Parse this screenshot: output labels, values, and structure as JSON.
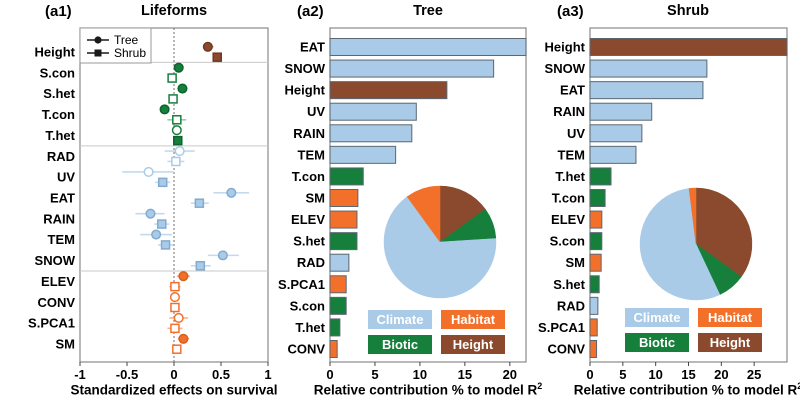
{
  "colors": {
    "climate": "#A9CBE8",
    "habitat": "#F3702B",
    "biotic": "#157F3B",
    "height": "#8B4A2D",
    "climate_dark": "#82ABD0",
    "habitat_dark": "#D65E1E",
    "biotic_dark": "#0E6330",
    "height_dark": "#6E3920",
    "climate_light": "#C3DAEE",
    "habitat_light": "#F8B488",
    "biotic_light": "#A2C9AC",
    "height_light": "#C4A090",
    "bar_border": "#5C6772",
    "panel_border": "#8A8A8A",
    "separator": "#C9C9C9",
    "zero_line": "#6F6F6F",
    "axis_text": "#000000",
    "legend_text": "#FFFFFF",
    "legend_marker": "#1A1A1A"
  },
  "chart_data": [
    {
      "type": "scatter",
      "panel_label": "(a1)",
      "title": "Lifeforms",
      "xlabel": "Standardized effects on survival",
      "xlabel_sup": "",
      "xlim": [
        -1,
        1
      ],
      "x_ticks": [
        -1,
        -0.5,
        0,
        0.5,
        1
      ],
      "legend": [
        {
          "label": "Tree",
          "marker": "circle"
        },
        {
          "label": "Shrub",
          "marker": "square"
        }
      ],
      "rows": [
        {
          "name": "Height",
          "group": "height",
          "tree": {
            "value": 0.36,
            "lo": 0.31,
            "hi": 0.42,
            "filled": true
          },
          "shrub": {
            "value": 0.46,
            "lo": 0.41,
            "hi": 0.51,
            "filled": true
          }
        },
        {
          "name": "S.con",
          "group": "biotic",
          "tree": {
            "value": 0.05,
            "lo": 0.02,
            "hi": 0.09,
            "filled": true
          },
          "shrub": {
            "value": -0.02,
            "lo": -0.06,
            "hi": 0.02,
            "filled": false
          }
        },
        {
          "name": "S.het",
          "group": "biotic",
          "tree": {
            "value": 0.09,
            "lo": 0.05,
            "hi": 0.13,
            "filled": true
          },
          "shrub": {
            "value": -0.01,
            "lo": -0.05,
            "hi": 0.03,
            "filled": false
          }
        },
        {
          "name": "T.con",
          "group": "biotic",
          "tree": {
            "value": -0.1,
            "lo": -0.14,
            "hi": -0.06,
            "filled": true
          },
          "shrub": {
            "value": 0.03,
            "lo": -0.07,
            "hi": 0.13,
            "filled": false
          }
        },
        {
          "name": "T.het",
          "group": "biotic",
          "tree": {
            "value": 0.03,
            "lo": -0.01,
            "hi": 0.07,
            "filled": false
          },
          "shrub": {
            "value": 0.04,
            "lo": 0.0,
            "hi": 0.08,
            "filled": true
          }
        },
        {
          "name": "RAD",
          "group": "climate",
          "tree": {
            "value": 0.06,
            "lo": -0.1,
            "hi": 0.22,
            "filled": false
          },
          "shrub": {
            "value": 0.02,
            "lo": -0.07,
            "hi": 0.11,
            "filled": false
          }
        },
        {
          "name": "UV",
          "group": "climate",
          "tree": {
            "value": -0.27,
            "lo": -0.55,
            "hi": 0.0,
            "filled": false
          },
          "shrub": {
            "value": -0.12,
            "lo": -0.2,
            "hi": -0.04,
            "filled": true
          }
        },
        {
          "name": "EAT",
          "group": "climate",
          "tree": {
            "value": 0.61,
            "lo": 0.42,
            "hi": 0.8,
            "filled": true
          },
          "shrub": {
            "value": 0.27,
            "lo": 0.18,
            "hi": 0.37,
            "filled": true
          }
        },
        {
          "name": "RAIN",
          "group": "climate",
          "tree": {
            "value": -0.25,
            "lo": -0.41,
            "hi": -0.1,
            "filled": true
          },
          "shrub": {
            "value": -0.13,
            "lo": -0.21,
            "hi": -0.05,
            "filled": true
          }
        },
        {
          "name": "TEM",
          "group": "climate",
          "tree": {
            "value": -0.19,
            "lo": -0.36,
            "hi": -0.02,
            "filled": true
          },
          "shrub": {
            "value": -0.09,
            "lo": -0.17,
            "hi": -0.01,
            "filled": true
          }
        },
        {
          "name": "SNOW",
          "group": "climate",
          "tree": {
            "value": 0.52,
            "lo": 0.36,
            "hi": 0.69,
            "filled": true
          },
          "shrub": {
            "value": 0.28,
            "lo": 0.18,
            "hi": 0.39,
            "filled": true
          }
        },
        {
          "name": "ELEV",
          "group": "habitat",
          "tree": {
            "value": 0.1,
            "lo": 0.03,
            "hi": 0.17,
            "filled": true
          },
          "shrub": {
            "value": 0.01,
            "lo": -0.05,
            "hi": 0.07,
            "filled": false
          }
        },
        {
          "name": "CONV",
          "group": "habitat",
          "tree": {
            "value": 0.01,
            "lo": -0.03,
            "hi": 0.05,
            "filled": false
          },
          "shrub": {
            "value": 0.01,
            "lo": -0.03,
            "hi": 0.05,
            "filled": false
          }
        },
        {
          "name": "S.PCA1",
          "group": "habitat",
          "tree": {
            "value": 0.05,
            "lo": -0.05,
            "hi": 0.15,
            "filled": false
          },
          "shrub": {
            "value": 0.01,
            "lo": -0.07,
            "hi": 0.09,
            "filled": false
          }
        },
        {
          "name": "SM",
          "group": "habitat",
          "tree": {
            "value": 0.1,
            "lo": 0.04,
            "hi": 0.16,
            "filled": true
          },
          "shrub": {
            "value": 0.03,
            "lo": -0.02,
            "hi": 0.08,
            "filled": false
          }
        }
      ],
      "separator_after_rows": [
        0,
        4,
        10
      ]
    },
    {
      "type": "bar",
      "panel_label": "(a2)",
      "title": "Tree",
      "xlabel": "Relative contribution % to model R",
      "xlabel_sup": "2",
      "xlim": [
        0,
        21.8
      ],
      "x_ticks": [
        0,
        5,
        10,
        15,
        20
      ],
      "bars": [
        {
          "name": "EAT",
          "group": "climate",
          "value": 21.8
        },
        {
          "name": "SNOW",
          "group": "climate",
          "value": 18.2
        },
        {
          "name": "Height",
          "group": "height",
          "value": 13.0
        },
        {
          "name": "UV",
          "group": "climate",
          "value": 9.6
        },
        {
          "name": "RAIN",
          "group": "climate",
          "value": 9.1
        },
        {
          "name": "TEM",
          "group": "climate",
          "value": 7.3
        },
        {
          "name": "T.con",
          "group": "biotic",
          "value": 3.7
        },
        {
          "name": "SM",
          "group": "habitat",
          "value": 3.1
        },
        {
          "name": "ELEV",
          "group": "habitat",
          "value": 3.0
        },
        {
          "name": "S.het",
          "group": "biotic",
          "value": 3.0
        },
        {
          "name": "RAD",
          "group": "climate",
          "value": 2.1
        },
        {
          "name": "S.PCA1",
          "group": "habitat",
          "value": 1.8
        },
        {
          "name": "S.con",
          "group": "biotic",
          "value": 1.8
        },
        {
          "name": "T.het",
          "group": "biotic",
          "value": 1.1
        },
        {
          "name": "CONV",
          "group": "habitat",
          "value": 0.8
        }
      ],
      "pie": {
        "slices": [
          {
            "label": "Height",
            "group": "height",
            "pct": 15
          },
          {
            "label": "Biotic",
            "group": "biotic",
            "pct": 9
          },
          {
            "label": "Climate",
            "group": "climate",
            "pct": 66
          },
          {
            "label": "Habitat",
            "group": "habitat",
            "pct": 10
          }
        ]
      },
      "legend": [
        {
          "label": "Climate",
          "group": "climate"
        },
        {
          "label": "Habitat",
          "group": "habitat"
        },
        {
          "label": "Biotic",
          "group": "biotic"
        },
        {
          "label": "Height",
          "group": "height"
        }
      ]
    },
    {
      "type": "bar",
      "panel_label": "(a3)",
      "title": "Shrub",
      "xlabel": "Relative contribution % to model R",
      "xlabel_sup": "2",
      "xlim": [
        0,
        30
      ],
      "x_ticks": [
        0,
        5,
        10,
        15,
        20,
        25
      ],
      "bars": [
        {
          "name": "Height",
          "group": "height",
          "value": 30.0
        },
        {
          "name": "SNOW",
          "group": "climate",
          "value": 17.8
        },
        {
          "name": "EAT",
          "group": "climate",
          "value": 17.2
        },
        {
          "name": "RAIN",
          "group": "climate",
          "value": 9.4
        },
        {
          "name": "UV",
          "group": "climate",
          "value": 7.9
        },
        {
          "name": "TEM",
          "group": "climate",
          "value": 7.0
        },
        {
          "name": "T.het",
          "group": "biotic",
          "value": 3.2
        },
        {
          "name": "T.con",
          "group": "biotic",
          "value": 2.3
        },
        {
          "name": "ELEV",
          "group": "habitat",
          "value": 1.8
        },
        {
          "name": "S.con",
          "group": "biotic",
          "value": 1.8
        },
        {
          "name": "SM",
          "group": "habitat",
          "value": 1.7
        },
        {
          "name": "S.het",
          "group": "biotic",
          "value": 1.4
        },
        {
          "name": "RAD",
          "group": "climate",
          "value": 1.2
        },
        {
          "name": "S.PCA1",
          "group": "habitat",
          "value": 1.1
        },
        {
          "name": "CONV",
          "group": "habitat",
          "value": 1.0
        }
      ],
      "pie": {
        "slices": [
          {
            "label": "Height",
            "group": "height",
            "pct": 35
          },
          {
            "label": "Biotic",
            "group": "biotic",
            "pct": 8
          },
          {
            "label": "Climate",
            "group": "climate",
            "pct": 55
          },
          {
            "label": "Habitat",
            "group": "habitat",
            "pct": 2
          }
        ]
      },
      "legend": [
        {
          "label": "Climate",
          "group": "climate"
        },
        {
          "label": "Habitat",
          "group": "habitat"
        },
        {
          "label": "Biotic",
          "group": "biotic"
        },
        {
          "label": "Height",
          "group": "height"
        }
      ]
    }
  ]
}
